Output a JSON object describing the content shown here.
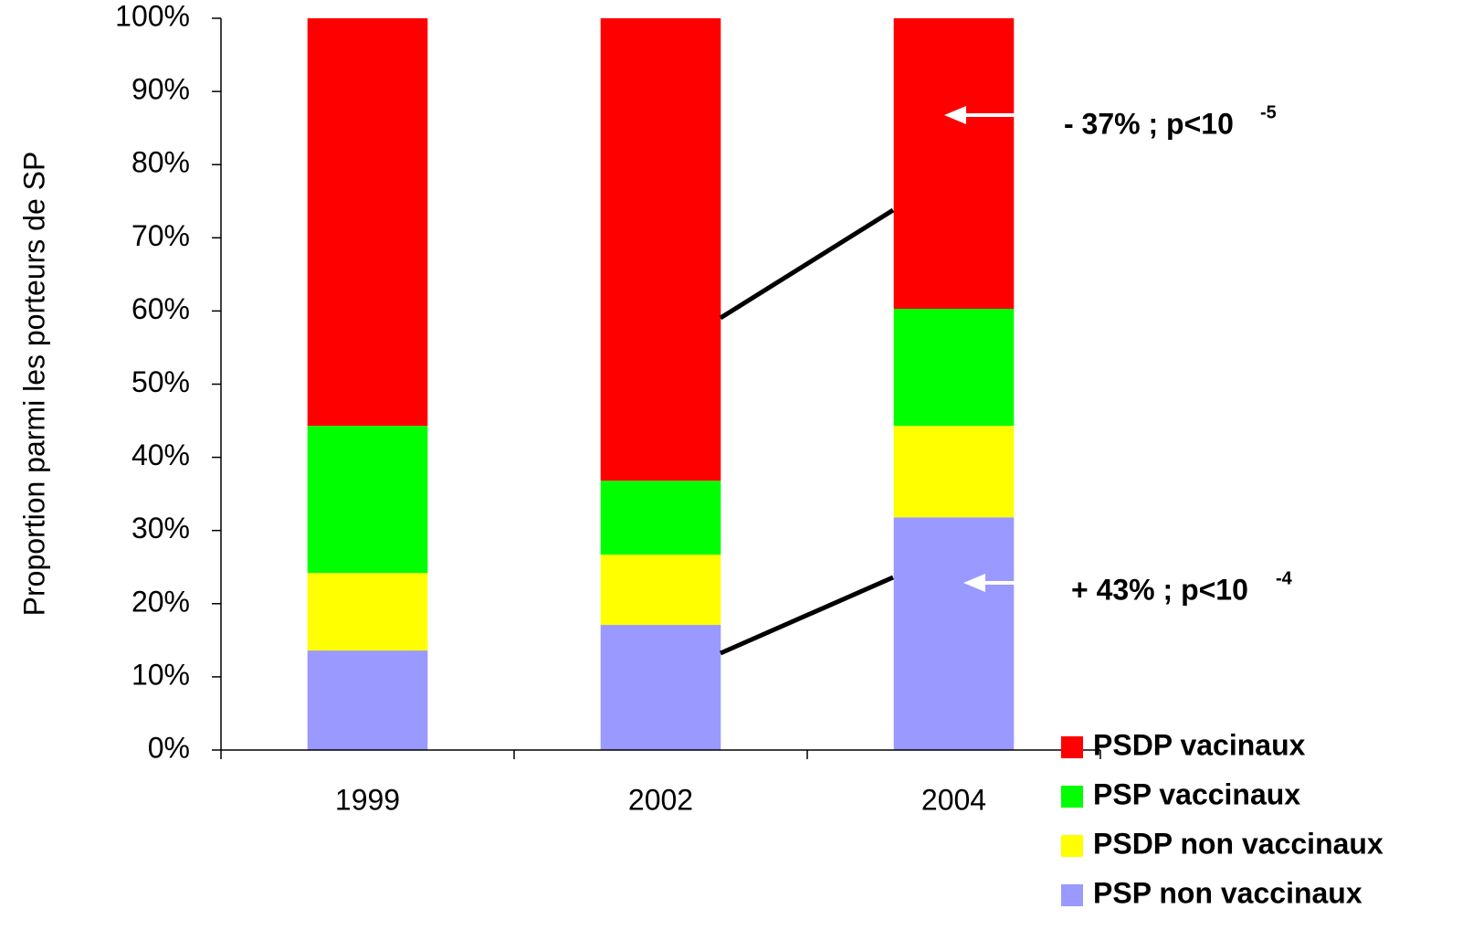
{
  "chart_data": {
    "type": "stacked_bar",
    "y_label": "Proportion parmi les porteurs de SP",
    "categories": [
      "1999",
      "2002",
      "2004"
    ],
    "series": [
      {
        "name": "PSDP vacinaux",
        "color": "#ff0000",
        "values": [
          55.7,
          63.2,
          39.7
        ]
      },
      {
        "name": "PSP vaccinaux",
        "color": "#00ff00",
        "values": [
          20.1,
          10.1,
          16.0
        ]
      },
      {
        "name": "PSDP non vaccinaux",
        "color": "#ffff00",
        "values": [
          10.6,
          9.6,
          12.5
        ]
      },
      {
        "name": "PSP non vaccinaux",
        "color": "#9999ff",
        "values": [
          13.6,
          17.1,
          31.8
        ]
      }
    ],
    "ylim": [
      0,
      100
    ],
    "yticks": [
      {
        "value": 0,
        "label": "0%"
      },
      {
        "value": 10,
        "label": "10%"
      },
      {
        "value": 20,
        "label": "20%"
      },
      {
        "value": 30,
        "label": "30%"
      },
      {
        "value": 40,
        "label": "40%"
      },
      {
        "value": 50,
        "label": "50%"
      },
      {
        "value": 60,
        "label": "60%"
      },
      {
        "value": 70,
        "label": "70%"
      },
      {
        "value": 80,
        "label": "80%"
      },
      {
        "value": 90,
        "label": "90%"
      },
      {
        "value": 100,
        "label": "100%"
      }
    ],
    "legend": "bottom-right",
    "annotations": [
      {
        "text": "- 37% ; p<10",
        "sup": "-5"
      },
      {
        "text": "+ 43% ; p<10",
        "sup": "-4"
      }
    ]
  }
}
